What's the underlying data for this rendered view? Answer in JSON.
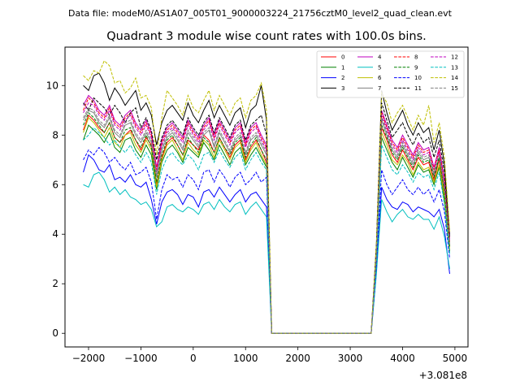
{
  "suptitle": "Data file: modeM0/AS1A07_005T01_9000003224_21756cztM0_level2_quad_clean.evt",
  "chart_data": {
    "type": "line",
    "title": "Quadrant 3 module wise count rates with 100.0s bins.",
    "xlabel": "",
    "ylabel": "",
    "x_offset_label": "+3.081e8",
    "xlim": [
      -2450,
      5250
    ],
    "ylim": [
      -0.55,
      11.55
    ],
    "x_ticks": [
      -2000,
      -1000,
      0,
      1000,
      2000,
      3000,
      4000,
      5000
    ],
    "x_tick_labels": [
      "−2000",
      "−1000",
      "0",
      "1000",
      "2000",
      "3000",
      "4000",
      "5000"
    ],
    "y_ticks": [
      0,
      2,
      4,
      6,
      8,
      10
    ],
    "y_tick_labels": [
      "0",
      "2",
      "4",
      "6",
      "8",
      "10"
    ],
    "grid": false,
    "legend_position": "top-right",
    "legend_columns": 4,
    "segments": [
      {
        "x_start": -2100,
        "x_step": 100,
        "x_end": 1400
      },
      {
        "x_start": 1500,
        "x_step": 100,
        "x_end": 3600
      },
      {
        "x_start": 3700,
        "x_step": 100,
        "x_end": 4900
      }
    ],
    "series": [
      {
        "name": "0",
        "color": "#ff0000",
        "dash": "solid",
        "active_a": [
          8.2,
          8.8,
          8.6,
          8.3,
          8.1,
          8.5,
          7.9,
          7.7,
          8.0,
          8.2,
          7.8,
          7.4,
          7.9,
          7.6,
          6.0,
          7.1,
          7.7,
          7.9,
          7.6,
          7.2,
          7.8,
          7.6,
          7.4,
          8.0,
          7.8,
          7.3,
          7.9,
          7.5,
          7.1,
          7.6,
          7.8,
          7.0,
          7.5,
          7.8,
          7.4,
          6.9
        ],
        "peak": 3.0,
        "active_b": [
          8.3,
          7.8,
          7.2,
          6.9,
          7.4,
          7.0,
          6.6,
          7.1,
          6.8,
          6.9,
          6.2,
          7.0,
          5.6,
          3.5
        ]
      },
      {
        "name": "1",
        "color": "#008000",
        "dash": "solid",
        "active_a": [
          7.8,
          8.4,
          8.2,
          8.0,
          7.7,
          8.1,
          7.5,
          7.3,
          7.8,
          7.9,
          7.4,
          7.1,
          7.6,
          7.2,
          5.8,
          6.9,
          7.4,
          7.6,
          7.3,
          6.9,
          7.5,
          7.3,
          7.1,
          7.7,
          7.4,
          7.0,
          7.6,
          7.2,
          6.8,
          7.3,
          7.5,
          6.8,
          7.2,
          7.5,
          7.1,
          6.7
        ],
        "peak": 3.0,
        "active_b": [
          7.9,
          7.4,
          6.9,
          6.6,
          7.1,
          6.7,
          6.3,
          6.8,
          6.5,
          6.6,
          6.0,
          6.7,
          5.3,
          3.3
        ]
      },
      {
        "name": "2",
        "color": "#0000ff",
        "dash": "solid",
        "active_a": [
          6.5,
          7.2,
          7.0,
          6.6,
          6.5,
          6.8,
          6.2,
          6.3,
          6.1,
          6.4,
          6.0,
          5.9,
          6.1,
          5.4,
          4.4,
          5.3,
          5.7,
          5.8,
          5.6,
          5.2,
          5.6,
          5.5,
          5.1,
          5.7,
          5.8,
          5.5,
          5.9,
          5.6,
          5.3,
          5.6,
          5.8,
          5.3,
          5.6,
          5.7,
          5.4,
          5.1
        ],
        "peak": 2.5,
        "active_b": [
          5.9,
          5.4,
          5.1,
          5.0,
          5.3,
          5.2,
          4.9,
          5.1,
          5.0,
          4.9,
          4.7,
          5.0,
          4.2,
          2.4
        ]
      },
      {
        "name": "3",
        "color": "#000000",
        "dash": "solid",
        "active_a": [
          10.0,
          9.8,
          10.4,
          10.5,
          10.1,
          9.4,
          9.9,
          9.6,
          9.2,
          9.5,
          9.8,
          9.0,
          9.3,
          8.8,
          7.6,
          8.5,
          9.0,
          9.2,
          8.9,
          8.6,
          9.3,
          8.8,
          8.5,
          9.0,
          9.4,
          8.7,
          9.2,
          8.8,
          8.4,
          8.9,
          9.1,
          8.3,
          9.0,
          9.2,
          10.0,
          8.6
        ],
        "peak": 3.6,
        "active_b": [
          9.8,
          8.9,
          8.2,
          8.6,
          9.0,
          8.4,
          8.0,
          8.5,
          8.1,
          8.3,
          7.4,
          8.2,
          6.8,
          4.0
        ]
      },
      {
        "name": "4",
        "color": "#bf00bf",
        "dash": "solid",
        "active_a": [
          9.2,
          9.6,
          9.4,
          9.0,
          8.8,
          9.2,
          8.6,
          8.4,
          8.8,
          9.0,
          8.5,
          8.2,
          8.6,
          8.1,
          6.7,
          7.8,
          8.3,
          8.5,
          8.2,
          7.9,
          8.6,
          8.2,
          7.9,
          8.4,
          8.7,
          8.0,
          8.6,
          8.2,
          7.8,
          8.3,
          8.5,
          7.7,
          8.3,
          8.5,
          8.0,
          7.6
        ],
        "peak": 3.3,
        "active_b": [
          9.0,
          8.4,
          7.8,
          7.5,
          8.0,
          7.6,
          7.2,
          7.7,
          7.4,
          7.5,
          6.7,
          7.5,
          6.2,
          3.8
        ]
      },
      {
        "name": "5",
        "color": "#00bfbf",
        "dash": "solid",
        "active_a": [
          6.0,
          5.9,
          6.4,
          6.5,
          6.2,
          5.7,
          5.9,
          5.6,
          5.8,
          5.5,
          5.4,
          5.2,
          5.3,
          5.0,
          4.3,
          4.5,
          5.1,
          5.2,
          5.0,
          4.9,
          5.1,
          5.0,
          4.8,
          5.2,
          5.3,
          5.0,
          5.4,
          5.1,
          4.9,
          5.2,
          5.3,
          4.8,
          5.1,
          5.3,
          5.0,
          4.7
        ],
        "peak": 2.4,
        "active_b": [
          5.4,
          4.9,
          4.5,
          4.8,
          5.0,
          4.7,
          4.6,
          4.8,
          4.6,
          4.6,
          4.2,
          4.7,
          3.9,
          2.6
        ]
      },
      {
        "name": "6",
        "color": "#bfbf00",
        "dash": "solid",
        "active_a": [
          8.1,
          8.7,
          8.5,
          8.2,
          7.9,
          8.3,
          7.7,
          7.5,
          8.0,
          8.1,
          7.6,
          7.3,
          7.8,
          7.4,
          5.9,
          7.0,
          7.6,
          7.8,
          7.4,
          7.0,
          7.7,
          7.4,
          7.2,
          7.8,
          7.6,
          7.1,
          7.8,
          7.4,
          7.0,
          7.5,
          7.7,
          6.9,
          7.4,
          7.7,
          7.2,
          6.8
        ],
        "peak": 3.0,
        "active_b": [
          8.1,
          7.6,
          7.0,
          6.8,
          7.2,
          6.9,
          6.4,
          6.9,
          6.6,
          6.7,
          6.1,
          6.8,
          5.5,
          3.4
        ]
      },
      {
        "name": "7",
        "color": "#808080",
        "dash": "solid",
        "active_a": [
          8.6,
          9.0,
          8.9,
          8.5,
          8.3,
          8.7,
          8.1,
          7.9,
          8.4,
          8.5,
          8.0,
          7.7,
          8.1,
          7.7,
          6.3,
          7.4,
          7.9,
          8.1,
          7.8,
          7.4,
          8.1,
          7.8,
          7.5,
          8.0,
          8.2,
          7.5,
          8.1,
          7.7,
          7.3,
          7.8,
          8.0,
          7.2,
          7.8,
          8.0,
          7.6,
          7.2
        ],
        "peak": 3.1,
        "active_b": [
          8.6,
          8.0,
          7.4,
          7.1,
          7.6,
          7.2,
          6.8,
          7.3,
          7.0,
          7.1,
          6.4,
          7.1,
          5.8,
          3.6
        ]
      },
      {
        "name": "8",
        "color": "#ff0000",
        "dash": "dashed",
        "active_a": [
          9.0,
          9.5,
          9.3,
          8.9,
          8.7,
          9.1,
          8.5,
          8.3,
          8.7,
          8.9,
          8.4,
          8.1,
          8.5,
          8.0,
          6.6,
          7.7,
          8.2,
          8.4,
          8.1,
          7.8,
          8.5,
          8.1,
          7.8,
          8.3,
          8.6,
          7.9,
          8.5,
          8.1,
          7.7,
          8.2,
          8.4,
          7.6,
          8.2,
          8.4,
          7.9,
          7.5
        ],
        "peak": 3.2,
        "active_b": [
          8.9,
          8.3,
          7.7,
          7.4,
          7.9,
          7.5,
          7.1,
          7.6,
          7.3,
          7.4,
          6.6,
          7.4,
          6.1,
          3.7
        ]
      },
      {
        "name": "9",
        "color": "#008000",
        "dash": "dashed",
        "active_a": [
          8.4,
          8.9,
          8.7,
          8.4,
          8.1,
          8.5,
          7.9,
          7.7,
          8.2,
          8.3,
          7.8,
          7.5,
          8.0,
          7.5,
          6.1,
          7.2,
          7.8,
          8.0,
          7.6,
          7.2,
          7.9,
          7.6,
          7.3,
          7.9,
          7.7,
          7.3,
          7.9,
          7.5,
          7.2,
          7.7,
          7.9,
          7.1,
          7.6,
          7.9,
          7.4,
          7.0
        ],
        "peak": 3.1,
        "active_b": [
          8.4,
          7.9,
          7.3,
          7.0,
          7.5,
          7.1,
          6.7,
          7.2,
          6.9,
          7.0,
          6.3,
          7.1,
          5.7,
          3.5
        ]
      },
      {
        "name": "10",
        "color": "#0000ff",
        "dash": "dashed",
        "active_a": [
          7.0,
          7.4,
          7.2,
          7.5,
          7.3,
          6.9,
          7.1,
          6.8,
          6.6,
          6.9,
          6.4,
          6.5,
          6.7,
          6.1,
          4.6,
          5.8,
          6.4,
          6.2,
          6.3,
          5.9,
          6.4,
          6.2,
          5.8,
          6.5,
          6.6,
          6.1,
          6.6,
          6.3,
          5.9,
          6.3,
          6.5,
          6.0,
          6.2,
          6.5,
          6.1,
          6.3
        ],
        "peak": 2.7,
        "active_b": [
          6.6,
          6.0,
          5.6,
          5.9,
          6.2,
          5.8,
          5.6,
          5.9,
          5.6,
          5.8,
          5.3,
          5.8,
          4.9,
          3.0
        ]
      },
      {
        "name": "11",
        "color": "#000000",
        "dash": "dashed",
        "active_a": [
          9.3,
          9.0,
          9.5,
          9.3,
          9.1,
          8.8,
          9.2,
          8.9,
          8.5,
          8.9,
          9.1,
          8.3,
          8.7,
          8.2,
          7.0,
          7.9,
          8.4,
          8.6,
          8.3,
          8.0,
          8.7,
          8.3,
          8.0,
          8.5,
          8.8,
          8.1,
          8.7,
          8.3,
          7.9,
          8.4,
          8.6,
          7.8,
          8.4,
          8.6,
          8.8,
          8.0
        ],
        "peak": 3.4,
        "active_b": [
          9.3,
          8.6,
          7.9,
          8.2,
          8.5,
          8.0,
          7.6,
          8.1,
          7.7,
          7.9,
          7.1,
          7.8,
          6.5,
          3.9
        ]
      },
      {
        "name": "12",
        "color": "#bf00bf",
        "dash": "dashed",
        "active_a": [
          8.9,
          9.3,
          9.2,
          8.8,
          8.6,
          9.0,
          8.4,
          8.2,
          8.6,
          8.8,
          8.3,
          8.0,
          8.4,
          7.9,
          6.5,
          7.6,
          8.1,
          8.3,
          8.0,
          7.7,
          8.4,
          8.0,
          7.7,
          8.2,
          8.5,
          7.8,
          8.4,
          8.0,
          7.6,
          8.1,
          8.3,
          7.5,
          8.1,
          8.3,
          7.8,
          7.4
        ],
        "peak": 3.2,
        "active_b": [
          8.8,
          8.2,
          7.6,
          7.3,
          7.8,
          7.4,
          7.0,
          7.5,
          7.2,
          7.3,
          6.5,
          7.3,
          6.0,
          3.7
        ]
      },
      {
        "name": "13",
        "color": "#00bfbf",
        "dash": "dashed",
        "active_a": [
          7.8,
          8.0,
          8.3,
          8.1,
          7.9,
          7.6,
          7.8,
          7.5,
          7.3,
          7.6,
          7.2,
          6.9,
          7.3,
          6.9,
          5.6,
          6.6,
          7.1,
          7.3,
          7.0,
          6.8,
          7.2,
          7.0,
          6.6,
          7.2,
          7.3,
          6.9,
          7.4,
          7.0,
          6.7,
          7.1,
          7.3,
          6.6,
          7.0,
          7.3,
          6.9,
          6.6
        ],
        "peak": 2.9,
        "active_b": [
          7.6,
          7.1,
          6.6,
          6.4,
          6.8,
          6.5,
          6.1,
          6.5,
          6.3,
          6.4,
          5.8,
          6.5,
          5.2,
          3.2
        ]
      },
      {
        "name": "14",
        "color": "#bfbf00",
        "dash": "dashed",
        "active_a": [
          10.4,
          10.2,
          10.6,
          10.5,
          11.0,
          10.8,
          10.1,
          10.2,
          9.7,
          9.9,
          10.3,
          9.5,
          9.6,
          9.1,
          7.2,
          8.7,
          9.8,
          9.5,
          9.2,
          8.8,
          9.6,
          9.1,
          8.9,
          9.4,
          9.8,
          9.0,
          9.6,
          9.2,
          8.8,
          9.3,
          9.5,
          8.7,
          9.4,
          9.6,
          10.1,
          9.0
        ],
        "peak": 3.6,
        "active_b": [
          9.7,
          9.3,
          8.5,
          8.9,
          9.2,
          8.7,
          8.2,
          8.8,
          8.4,
          9.2,
          7.7,
          8.5,
          7.1,
          4.1
        ]
      },
      {
        "name": "15",
        "color": "#808080",
        "dash": "dashed",
        "active_a": [
          8.7,
          9.1,
          9.0,
          8.6,
          8.4,
          8.8,
          8.2,
          8.0,
          8.5,
          8.6,
          8.1,
          7.8,
          8.2,
          7.8,
          6.4,
          7.5,
          8.0,
          8.2,
          7.9,
          7.5,
          8.2,
          7.9,
          7.6,
          8.1,
          8.3,
          7.6,
          8.2,
          7.8,
          7.4,
          7.9,
          8.1,
          7.3,
          7.9,
          8.1,
          7.7,
          7.3
        ],
        "peak": 3.1,
        "active_b": [
          8.7,
          8.1,
          7.5,
          7.2,
          7.7,
          7.3,
          6.9,
          7.4,
          7.1,
          7.2,
          6.5,
          7.2,
          5.9,
          3.6
        ]
      }
    ]
  }
}
